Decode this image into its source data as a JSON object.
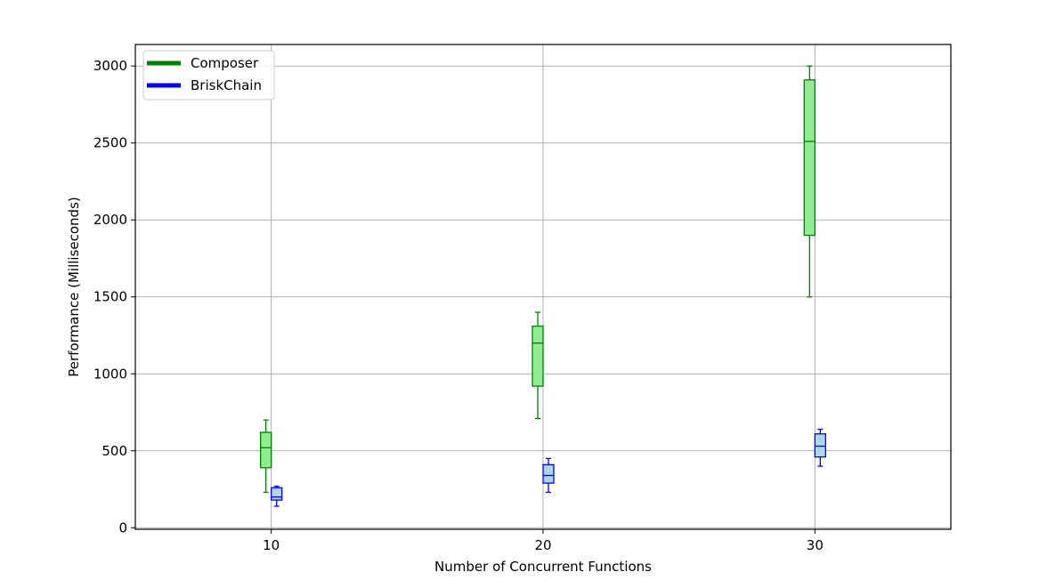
{
  "chart_data": {
    "type": "box",
    "xlabel": "Number of Concurrent Functions",
    "ylabel": "Performance (Milliseconds)",
    "categories": [
      10,
      20,
      30
    ],
    "xlim": [
      5,
      35
    ],
    "ylim": [
      -10,
      3140
    ],
    "yticks": [
      0,
      500,
      1000,
      1500,
      2000,
      2500,
      3000
    ],
    "grid": true,
    "legend_position": "top-left",
    "series": [
      {
        "name": "Composer",
        "color": "#008000",
        "fill": "#90ee90",
        "boxes": [
          {
            "x": 10,
            "min": 230,
            "q1": 390,
            "median": 520,
            "q3": 620,
            "max": 700
          },
          {
            "x": 20,
            "min": 710,
            "q1": 920,
            "median": 1200,
            "q3": 1310,
            "max": 1400
          },
          {
            "x": 30,
            "min": 1500,
            "q1": 1900,
            "median": 2510,
            "q3": 2910,
            "max": 3000
          }
        ]
      },
      {
        "name": "BriskChain",
        "color": "#0000ff",
        "fill": "#add8e6",
        "boxes": [
          {
            "x": 10,
            "min": 140,
            "q1": 180,
            "median": 200,
            "q3": 260,
            "max": 270
          },
          {
            "x": 20,
            "min": 230,
            "q1": 290,
            "median": 340,
            "q3": 410,
            "max": 450
          },
          {
            "x": 30,
            "min": 400,
            "q1": 460,
            "median": 530,
            "q3": 610,
            "max": 640
          }
        ]
      }
    ]
  }
}
